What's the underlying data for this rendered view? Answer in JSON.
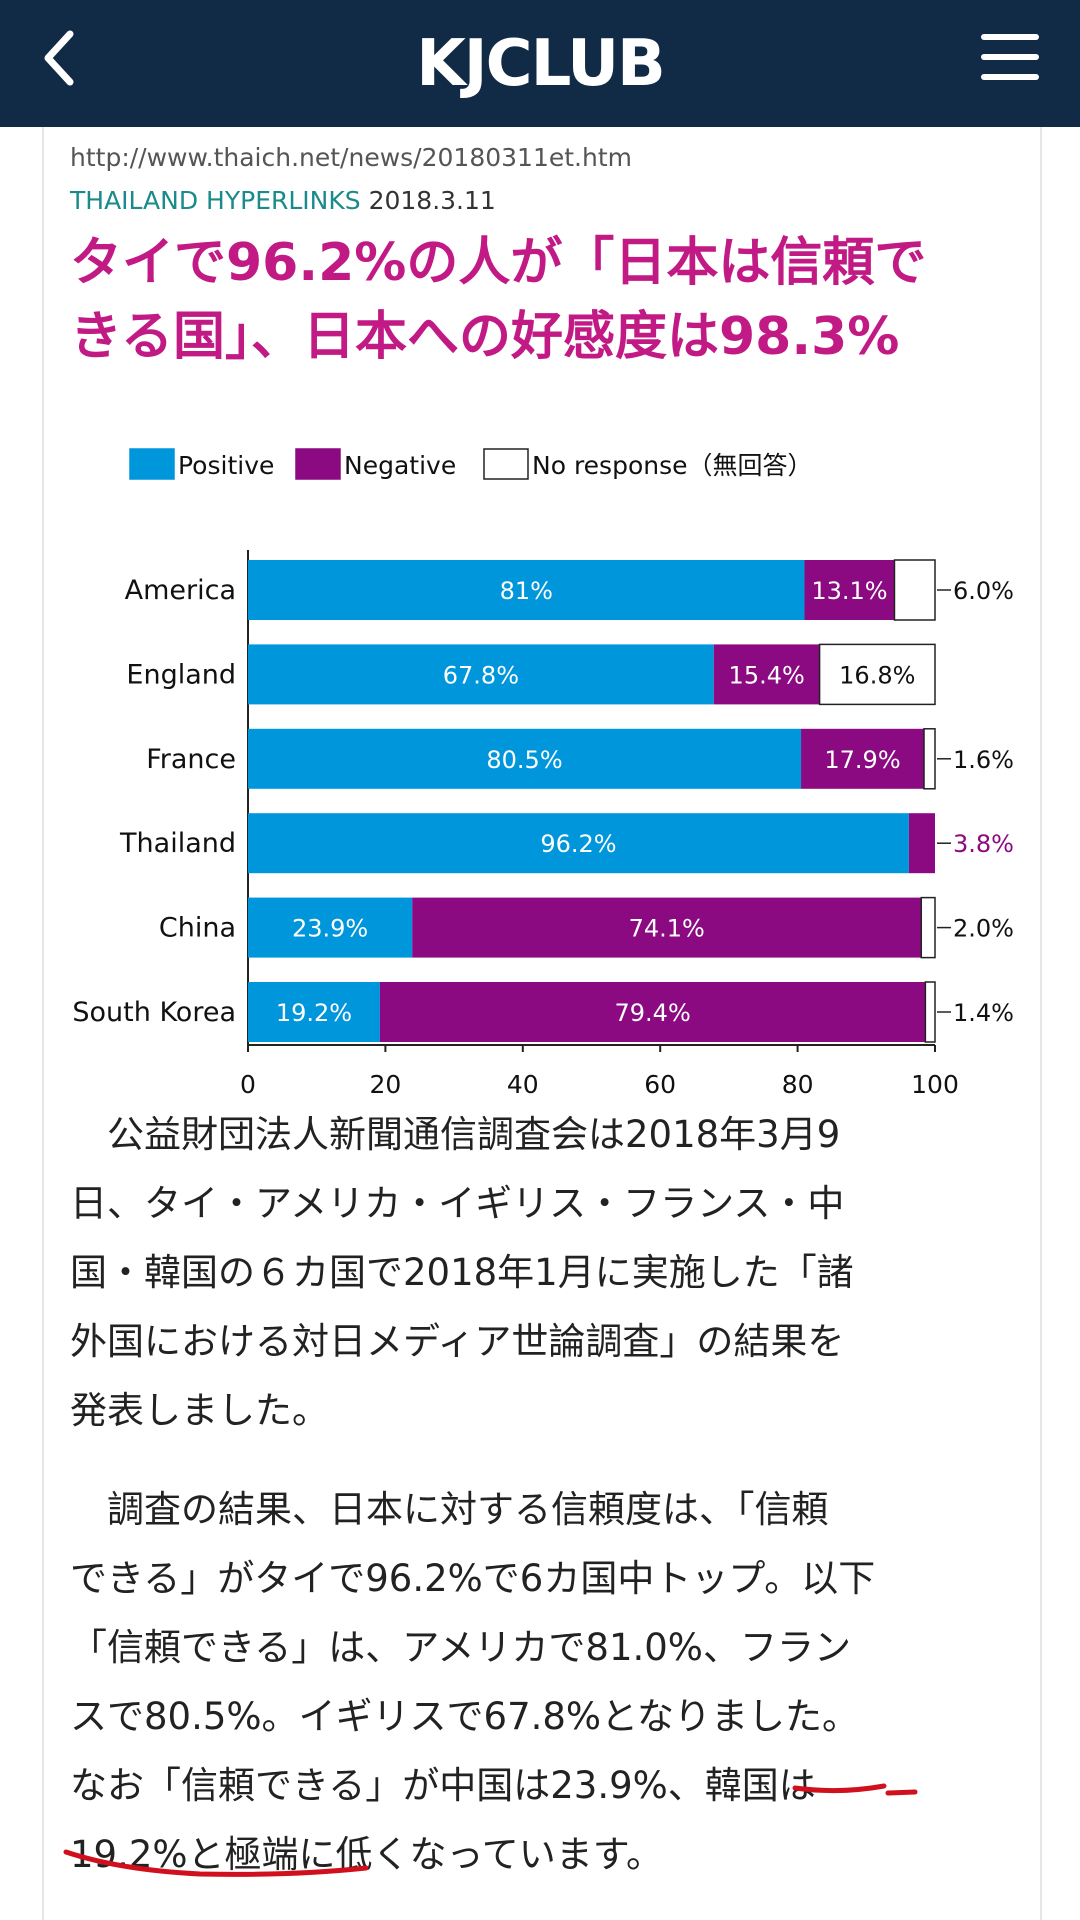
{
  "header": {
    "logo_text": "KJCLUB",
    "background_color": "#112a46",
    "back_icon": "chevron-left-icon",
    "menu_icon": "hamburger-menu-icon"
  },
  "article": {
    "source_url": "http://www.thaich.net/news/20180311et.htm",
    "source_name": "THAILAND HYPERLINKS",
    "source_date": "2018.3.11",
    "headline_lines": [
      "タイで96.2%の人が「日本は信頼で",
      "きる国」、日本への好感度は98.3%"
    ],
    "headline_color": "#c21a85",
    "paragraph1_lines": [
      "　公益財団法人新聞通信調査会は2018年3月9",
      "日、タイ・アメリカ・イギリス・フランス・中",
      "国・韓国の６カ国で2018年1月に実施した「諸",
      "外国における対日メディア世論調査」の結果を",
      "発表しました。"
    ],
    "paragraph2_lines": [
      "　調査の結果、日本に対する信頼度は、「信頼",
      "できる」がタイで96.2%で6カ国中トップ。以下",
      "「信頼できる」は、アメリカで81.0%、フラン",
      "スで80.5%。イギリスで67.8%となりました。",
      "なお「信頼できる」が中国は23.9%、韓国は",
      "19.2%と極端に低くなっています。"
    ]
  },
  "chart_data": {
    "type": "bar",
    "orientation": "horizontal",
    "stacked": true,
    "categories": [
      "America",
      "England",
      "France",
      "Thailand",
      "China",
      "South Korea"
    ],
    "series": [
      {
        "name": "Positive",
        "color": "#0096dc",
        "values": [
          81,
          67.8,
          80.5,
          96.2,
          23.9,
          19.2
        ],
        "labels": [
          "81%",
          "67.8%",
          "80.5%",
          "96.2%",
          "23.9%",
          "19.2%"
        ]
      },
      {
        "name": "Negative",
        "color": "#8b0a82",
        "values": [
          13.1,
          15.4,
          17.9,
          3.8,
          74.1,
          79.4
        ],
        "labels": [
          "13.1%",
          "15.4%",
          "17.9%",
          "3.8%",
          "74.1%",
          "79.4%"
        ]
      },
      {
        "name": "No response（無回答）",
        "color": "#ffffff",
        "values": [
          6.0,
          16.8,
          1.6,
          0,
          2.0,
          1.4
        ],
        "labels": [
          "6.0%",
          "16.8%",
          "1.6%",
          "",
          "2.0%",
          "1.4%"
        ]
      }
    ],
    "xlim": [
      0,
      100
    ],
    "xticks": [
      0,
      20,
      40,
      60,
      80,
      100
    ],
    "legend_position": "top"
  }
}
